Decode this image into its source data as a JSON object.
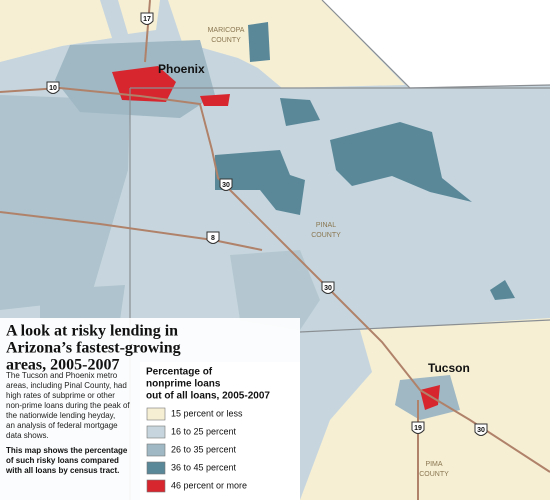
{
  "map": {
    "places": {
      "phoenix": "Phoenix",
      "tucson": "Tucson"
    },
    "counties": {
      "maricopa": [
        "MARICOPA",
        "COUNTY"
      ],
      "pinal": [
        "PINAL",
        "COUNTY"
      ],
      "pima": [
        "PIMA",
        "COUNTY"
      ]
    },
    "highways": [
      "17",
      "10",
      "30",
      "8",
      "30",
      "19",
      "30"
    ]
  },
  "panel": {
    "title": [
      "A look at risky lending in",
      "Arizona’s fastest-growing",
      "areas, 2005-2007"
    ],
    "description": [
      "The Tucson and Phoenix metro",
      "areas, including Pinal County, had",
      "high rates of subprime or other",
      "non-prime loans during the peak of",
      "the nationwide lending heyday,",
      "an analysis of federal mortgage",
      "data shows."
    ],
    "note": [
      "This map shows the percentage",
      "of such risky loans compared",
      "with all loans by census tract."
    ]
  },
  "legend": {
    "title": [
      "Percentage of",
      "nonprime loans",
      "out of all loans, 2005-2007"
    ],
    "items": [
      {
        "label": "15 percent or less",
        "color": "#f6efd4"
      },
      {
        "label": "16 to 25 percent",
        "color": "#c7d6de"
      },
      {
        "label": "26 to 35 percent",
        "color": "#9fb8c4"
      },
      {
        "label": "36 to 45 percent",
        "color": "#5a8899"
      },
      {
        "label": "46 percent or more",
        "color": "#d7262e"
      }
    ]
  }
}
